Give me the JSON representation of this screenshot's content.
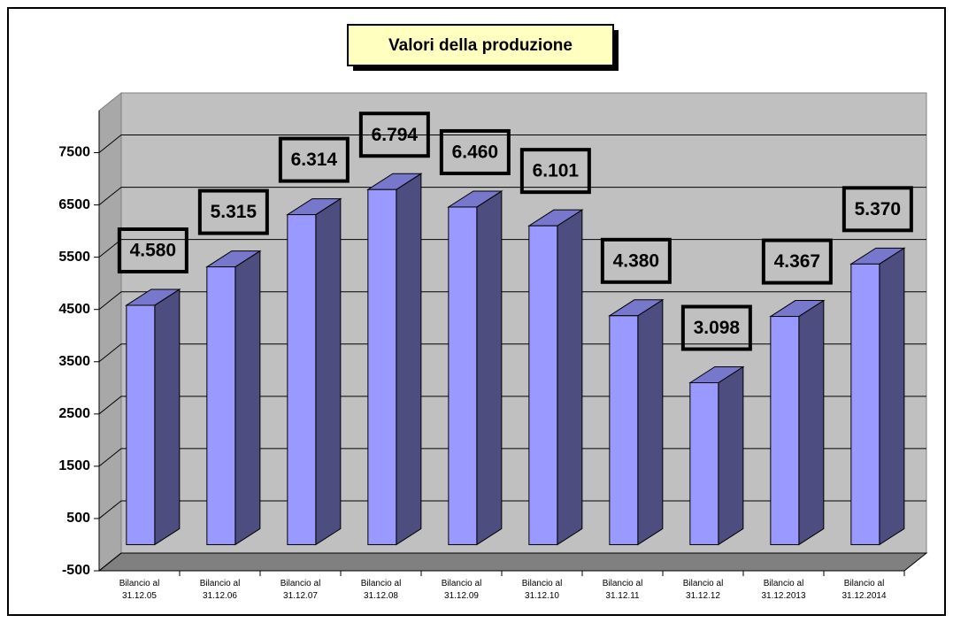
{
  "chart_data": {
    "type": "bar3d",
    "title": "Valori della produzione",
    "categories": [
      "Bilancio al 31.12.05",
      "Bilancio al 31.12.06",
      "Bilancio al 31.12.07",
      "Bilancio al 31.12.08",
      "Bilancio al 31.12.09",
      "Bilancio al 31.12.10",
      "Bilancio al 31.12.11",
      "Bilancio al 31.12.12",
      "Bilancio al 31.12.2013",
      "Bilancio al 31.12.2014"
    ],
    "values": [
      4580,
      5315,
      6314,
      6794,
      6460,
      6101,
      4380,
      3098,
      4367,
      5370
    ],
    "value_labels": [
      "4.580",
      "5.315",
      "6.314",
      "6.794",
      "6.460",
      "6.101",
      "4.380",
      "3.098",
      "4.367",
      "5.370"
    ],
    "color": "#9999ff",
    "ylim": [
      -500,
      8000
    ],
    "yticks": [
      -500,
      500,
      1500,
      2500,
      3500,
      4500,
      5500,
      6500,
      7500
    ],
    "grid": true
  }
}
